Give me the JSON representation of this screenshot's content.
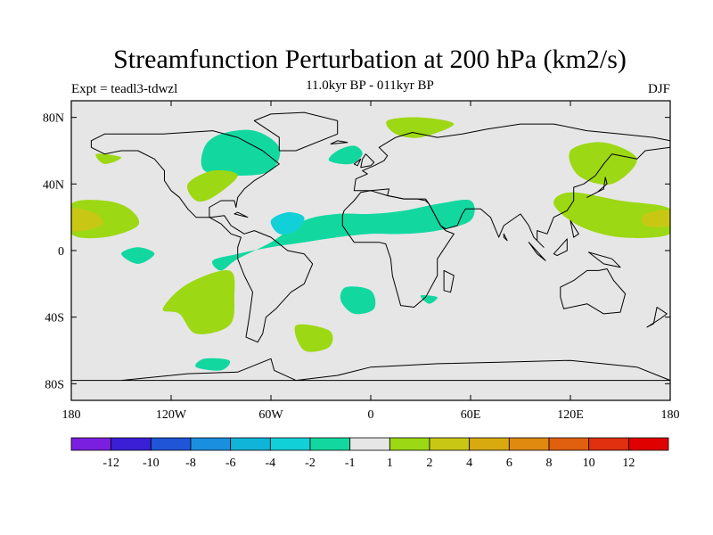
{
  "title": "Streamfunction Perturbation at 200 hPa (km2/s)",
  "subtitle": "11.0kyr BP - 011kyr BP",
  "expt_label": "Expt = teadl3-tdwzl",
  "season": "DJF",
  "axes": {
    "x_ticks": [
      {
        "lon": -180,
        "label": "180"
      },
      {
        "lon": -120,
        "label": "120W"
      },
      {
        "lon": -60,
        "label": "60W"
      },
      {
        "lon": 0,
        "label": "0"
      },
      {
        "lon": 60,
        "label": "60E"
      },
      {
        "lon": 120,
        "label": "120E"
      },
      {
        "lon": 180,
        "label": "180"
      }
    ],
    "y_ticks": [
      {
        "lat": 80,
        "label": "80N"
      },
      {
        "lat": 40,
        "label": "40N"
      },
      {
        "lat": 0,
        "label": "0"
      },
      {
        "lat": -40,
        "label": "40S"
      },
      {
        "lat": -80,
        "label": "80S"
      }
    ]
  },
  "colorbar": {
    "colors": [
      "#7a1fe0",
      "#3a1fd6",
      "#1f55d6",
      "#1a8fe0",
      "#10b4d8",
      "#12d0d8",
      "#12d8a0",
      "#e6e6e6",
      "#9cd814",
      "#c8c814",
      "#d8aa10",
      "#e08a10",
      "#e06010",
      "#e03010",
      "#e00000"
    ],
    "labels": [
      "-12",
      "-10",
      "-8",
      "-6",
      "-4",
      "-2",
      "-1",
      "1",
      "2",
      "4",
      "6",
      "8",
      "10",
      "12"
    ]
  },
  "field": {
    "background_color": "#e6e6e6",
    "contours": [
      {
        "level": "-1",
        "color": "#12d8a0",
        "points": [
          [
            -90,
            -12
          ],
          [
            -80,
            -5
          ],
          [
            -60,
            5
          ],
          [
            -40,
            18
          ],
          [
            -20,
            22
          ],
          [
            0,
            22
          ],
          [
            20,
            24
          ],
          [
            40,
            28
          ],
          [
            60,
            30
          ],
          [
            60,
            18
          ],
          [
            40,
            12
          ],
          [
            20,
            10
          ],
          [
            0,
            10
          ],
          [
            -20,
            8
          ],
          [
            -40,
            5
          ],
          [
            -60,
            2
          ],
          [
            -80,
            -2
          ],
          [
            -95,
            -6
          ]
        ]
      },
      {
        "level": "-2",
        "color": "#12d0d8",
        "points": [
          [
            -60,
            18
          ],
          [
            -50,
            23
          ],
          [
            -40,
            20
          ],
          [
            -45,
            12
          ],
          [
            -55,
            10
          ]
        ]
      },
      {
        "level": "-1",
        "color": "#12d8a0",
        "points": [
          [
            -100,
            62
          ],
          [
            -90,
            70
          ],
          [
            -70,
            72
          ],
          [
            -55,
            62
          ],
          [
            -60,
            48
          ],
          [
            -80,
            45
          ],
          [
            -100,
            48
          ]
        ]
      },
      {
        "level": "-1",
        "color": "#12d8a0",
        "points": [
          [
            -20,
            60
          ],
          [
            -10,
            63
          ],
          [
            -5,
            58
          ],
          [
            -12,
            52
          ],
          [
            -25,
            54
          ]
        ]
      },
      {
        "level": "-1",
        "color": "#12d8a0",
        "points": [
          [
            -150,
            -2
          ],
          [
            -140,
            2
          ],
          [
            -130,
            -2
          ],
          [
            -140,
            -8
          ]
        ]
      },
      {
        "level": "-1",
        "color": "#12d8a0",
        "points": [
          [
            -15,
            -22
          ],
          [
            0,
            -24
          ],
          [
            2,
            -35
          ],
          [
            -10,
            -38
          ],
          [
            -18,
            -30
          ]
        ]
      },
      {
        "level": "-1",
        "color": "#12d8a0",
        "points": [
          [
            30,
            -27
          ],
          [
            40,
            -28
          ],
          [
            35,
            -32
          ]
        ]
      },
      {
        "level": "-1",
        "color": "#12d8a0",
        "points": [
          [
            -100,
            -65
          ],
          [
            -85,
            -66
          ],
          [
            -90,
            -72
          ],
          [
            -105,
            -70
          ]
        ]
      },
      {
        "level": "1",
        "color": "#9cd814",
        "points": [
          [
            -180,
            28
          ],
          [
            -160,
            30
          ],
          [
            -145,
            25
          ],
          [
            -140,
            15
          ],
          [
            -160,
            8
          ],
          [
            -180,
            10
          ]
        ]
      },
      {
        "level": "1",
        "color": "#9cd814",
        "points": [
          [
            -110,
            -20
          ],
          [
            -85,
            -12
          ],
          [
            -82,
            -28
          ],
          [
            -85,
            -45
          ],
          [
            -105,
            -50
          ],
          [
            -115,
            -38
          ],
          [
            -125,
            -35
          ]
        ]
      },
      {
        "level": "1",
        "color": "#9cd814",
        "points": [
          [
            -45,
            -45
          ],
          [
            -25,
            -48
          ],
          [
            -25,
            -58
          ],
          [
            -40,
            -60
          ]
        ]
      },
      {
        "level": "1",
        "color": "#9cd814",
        "points": [
          [
            10,
            78
          ],
          [
            30,
            80
          ],
          [
            50,
            76
          ],
          [
            30,
            68
          ],
          [
            15,
            70
          ]
        ]
      },
      {
        "level": "1",
        "color": "#9cd814",
        "points": [
          [
            120,
            60
          ],
          [
            140,
            65
          ],
          [
            160,
            55
          ],
          [
            145,
            40
          ],
          [
            125,
            45
          ]
        ]
      },
      {
        "level": "1",
        "color": "#9cd814",
        "points": [
          [
            -165,
            58
          ],
          [
            -150,
            56
          ],
          [
            -160,
            52
          ]
        ]
      },
      {
        "level": "1",
        "color": "#9cd814",
        "points": [
          [
            -110,
            40
          ],
          [
            -95,
            48
          ],
          [
            -80,
            45
          ],
          [
            -95,
            32
          ],
          [
            -105,
            30
          ]
        ]
      },
      {
        "level": "1",
        "color": "#9cd814",
        "points": [
          [
            120,
            35
          ],
          [
            150,
            30
          ],
          [
            180,
            25
          ],
          [
            180,
            10
          ],
          [
            150,
            8
          ],
          [
            125,
            15
          ],
          [
            110,
            28
          ]
        ]
      },
      {
        "level": "2",
        "color": "#c8c814",
        "points": [
          [
            -180,
            25
          ],
          [
            -165,
            22
          ],
          [
            -162,
            15
          ],
          [
            -180,
            12
          ]
        ]
      },
      {
        "level": "2",
        "color": "#c8c814",
        "points": [
          [
            165,
            22
          ],
          [
            180,
            24
          ],
          [
            180,
            15
          ],
          [
            165,
            15
          ]
        ]
      }
    ]
  },
  "coastlines": [
    [
      [
        -168,
        66
      ],
      [
        -160,
        70
      ],
      [
        -140,
        70
      ],
      [
        -125,
        70
      ],
      [
        -95,
        72
      ],
      [
        -80,
        68
      ],
      [
        -65,
        60
      ],
      [
        -55,
        52
      ],
      [
        -65,
        45
      ],
      [
        -70,
        42
      ],
      [
        -76,
        37
      ],
      [
        -80,
        32
      ],
      [
        -81,
        26
      ],
      [
        -82,
        30
      ],
      [
        -90,
        30
      ],
      [
        -97,
        26
      ],
      [
        -97,
        20
      ],
      [
        -90,
        16
      ],
      [
        -84,
        10
      ],
      [
        -78,
        8
      ],
      [
        -80,
        2
      ],
      [
        -80,
        -5
      ],
      [
        -76,
        -15
      ],
      [
        -71,
        -25
      ],
      [
        -73,
        -40
      ],
      [
        -75,
        -52
      ],
      [
        -68,
        -55
      ],
      [
        -65,
        -50
      ],
      [
        -63,
        -40
      ],
      [
        -57,
        -35
      ],
      [
        -48,
        -25
      ],
      [
        -40,
        -20
      ],
      [
        -35,
        -8
      ],
      [
        -40,
        -2
      ],
      [
        -50,
        0
      ],
      [
        -60,
        8
      ],
      [
        -70,
        12
      ],
      [
        -76,
        10
      ],
      [
        -84,
        15
      ],
      [
        -88,
        21
      ],
      [
        -96,
        20
      ],
      [
        -105,
        20
      ],
      [
        -110,
        25
      ],
      [
        -115,
        32
      ],
      [
        -120,
        36
      ],
      [
        -124,
        42
      ],
      [
        -124,
        48
      ],
      [
        -130,
        55
      ],
      [
        -140,
        60
      ],
      [
        -150,
        60
      ],
      [
        -160,
        58
      ],
      [
        -168,
        62
      ]
    ],
    [
      [
        -55,
        60
      ],
      [
        -45,
        60
      ],
      [
        -20,
        70
      ],
      [
        -20,
        78
      ],
      [
        -40,
        83
      ],
      [
        -60,
        82
      ],
      [
        -70,
        78
      ],
      [
        -55,
        68
      ]
    ],
    [
      [
        -10,
        36
      ],
      [
        -9,
        43
      ],
      [
        -2,
        46
      ],
      [
        -5,
        48
      ],
      [
        2,
        51
      ],
      [
        8,
        54
      ],
      [
        10,
        57
      ],
      [
        5,
        62
      ],
      [
        15,
        68
      ],
      [
        25,
        71
      ],
      [
        40,
        68
      ],
      [
        55,
        70
      ],
      [
        70,
        73
      ],
      [
        90,
        76
      ],
      [
        110,
        76
      ],
      [
        130,
        72
      ],
      [
        150,
        70
      ],
      [
        170,
        68
      ],
      [
        180,
        66
      ],
      [
        180,
        62
      ],
      [
        165,
        60
      ],
      [
        160,
        55
      ],
      [
        145,
        58
      ],
      [
        140,
        52
      ],
      [
        135,
        45
      ],
      [
        128,
        40
      ],
      [
        122,
        38
      ],
      [
        122,
        30
      ],
      [
        118,
        24
      ],
      [
        110,
        20
      ],
      [
        106,
        10
      ],
      [
        100,
        12
      ],
      [
        100,
        6
      ],
      [
        104,
        2
      ],
      [
        98,
        8
      ],
      [
        95,
        15
      ],
      [
        90,
        22
      ],
      [
        80,
        15
      ],
      [
        77,
        8
      ],
      [
        72,
        20
      ],
      [
        66,
        25
      ],
      [
        57,
        25
      ],
      [
        55,
        22
      ],
      [
        52,
        15
      ],
      [
        45,
        13
      ],
      [
        42,
        15
      ],
      [
        35,
        28
      ],
      [
        33,
        30
      ],
      [
        28,
        31
      ],
      [
        20,
        31
      ],
      [
        10,
        33
      ],
      [
        11,
        37
      ],
      [
        0,
        36
      ]
    ],
    [
      [
        -17,
        21
      ],
      [
        -17,
        15
      ],
      [
        -10,
        5
      ],
      [
        5,
        5
      ],
      [
        9,
        4
      ],
      [
        12,
        -5
      ],
      [
        13,
        -15
      ],
      [
        18,
        -33
      ],
      [
        26,
        -34
      ],
      [
        33,
        -28
      ],
      [
        40,
        -15
      ],
      [
        40,
        -5
      ],
      [
        50,
        10
      ],
      [
        45,
        12
      ],
      [
        42,
        15
      ],
      [
        35,
        28
      ],
      [
        33,
        31
      ],
      [
        20,
        31
      ],
      [
        10,
        33
      ],
      [
        0,
        36
      ],
      [
        -6,
        35
      ],
      [
        -10,
        30
      ],
      [
        -16,
        24
      ]
    ],
    [
      [
        114,
        -22
      ],
      [
        122,
        -18
      ],
      [
        130,
        -12
      ],
      [
        137,
        -12
      ],
      [
        142,
        -11
      ],
      [
        146,
        -18
      ],
      [
        153,
        -26
      ],
      [
        150,
        -37
      ],
      [
        140,
        -38
      ],
      [
        130,
        -32
      ],
      [
        116,
        -35
      ],
      [
        114,
        -28
      ]
    ],
    [
      [
        -180,
        -78
      ],
      [
        -150,
        -78
      ],
      [
        -110,
        -74
      ],
      [
        -80,
        -73
      ],
      [
        -60,
        -65
      ],
      [
        -58,
        -72
      ],
      [
        -45,
        -78
      ],
      [
        -20,
        -75
      ],
      [
        0,
        -70
      ],
      [
        40,
        -68
      ],
      [
        80,
        -67
      ],
      [
        120,
        -66
      ],
      [
        160,
        -70
      ],
      [
        180,
        -78
      ]
    ],
    [
      [
        44,
        -12
      ],
      [
        50,
        -15
      ],
      [
        48,
        -25
      ],
      [
        44,
        -24
      ]
    ],
    [
      [
        130,
        32
      ],
      [
        136,
        35
      ],
      [
        142,
        40
      ],
      [
        141,
        44
      ],
      [
        140,
        37
      ],
      [
        132,
        33
      ]
    ],
    [
      [
        95,
        5
      ],
      [
        105,
        -6
      ],
      [
        100,
        -2
      ]
    ],
    [
      [
        110,
        -2
      ],
      [
        118,
        7
      ],
      [
        118,
        0
      ],
      [
        112,
        -3
      ]
    ],
    [
      [
        131,
        -1
      ],
      [
        145,
        -5
      ],
      [
        150,
        -10
      ],
      [
        140,
        -8
      ]
    ],
    [
      [
        120,
        18
      ],
      [
        125,
        10
      ],
      [
        122,
        8
      ]
    ],
    [
      [
        -6,
        50
      ],
      [
        0,
        51
      ],
      [
        2,
        53
      ],
      [
        -3,
        58
      ],
      [
        -5,
        55
      ]
    ],
    [
      [
        -10,
        52
      ],
      [
        -6,
        55
      ],
      [
        -8,
        51
      ]
    ],
    [
      [
        -24,
        64
      ],
      [
        -14,
        65
      ],
      [
        -20,
        66
      ]
    ],
    [
      [
        -82,
        22
      ],
      [
        -74,
        20
      ],
      [
        -80,
        23
      ]
    ],
    [
      [
        166,
        -46
      ],
      [
        174,
        -41
      ],
      [
        178,
        -38
      ],
      [
        172,
        -34
      ],
      [
        170,
        -44
      ]
    ],
    [
      [
        80,
        8
      ],
      [
        82,
        6
      ],
      [
        80,
        10
      ]
    ]
  ]
}
